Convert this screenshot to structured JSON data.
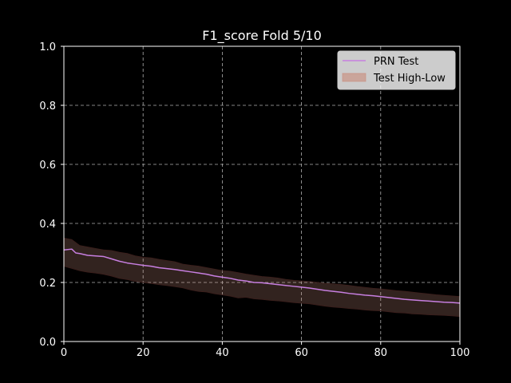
{
  "chart_data": {
    "type": "line",
    "title": "F1_score Fold 5/10",
    "xlabel": "",
    "ylabel": "",
    "xlim": [
      0,
      100
    ],
    "ylim": [
      0.0,
      1.0
    ],
    "x_ticks": [
      "0",
      "20",
      "40",
      "60",
      "80",
      "100"
    ],
    "y_ticks": [
      "0.0",
      "0.2",
      "0.4",
      "0.6",
      "0.8",
      "1.0"
    ],
    "grid": true,
    "legend_position": "top-right",
    "legend": [
      "PRN Test",
      "Test High-Low"
    ],
    "series": [
      {
        "name": "PRN Test",
        "kind": "line",
        "color": "#c77fe0",
        "x": [
          0,
          2,
          3,
          4,
          6,
          8,
          10,
          12,
          14,
          16,
          18,
          20,
          22,
          24,
          26,
          28,
          30,
          32,
          34,
          36,
          38,
          40,
          42,
          44,
          46,
          48,
          50,
          52,
          54,
          56,
          58,
          60,
          62,
          64,
          66,
          68,
          70,
          72,
          74,
          76,
          78,
          80,
          82,
          84,
          86,
          88,
          90,
          92,
          94,
          96,
          98,
          100
        ],
        "values": [
          0.31,
          0.313,
          0.3,
          0.298,
          0.292,
          0.29,
          0.288,
          0.28,
          0.272,
          0.266,
          0.262,
          0.258,
          0.255,
          0.25,
          0.247,
          0.244,
          0.24,
          0.236,
          0.232,
          0.228,
          0.222,
          0.218,
          0.214,
          0.208,
          0.205,
          0.2,
          0.199,
          0.196,
          0.193,
          0.19,
          0.187,
          0.184,
          0.181,
          0.177,
          0.173,
          0.17,
          0.167,
          0.163,
          0.16,
          0.157,
          0.155,
          0.152,
          0.149,
          0.146,
          0.143,
          0.141,
          0.139,
          0.137,
          0.135,
          0.133,
          0.132,
          0.13
        ]
      },
      {
        "name": "Test High-Low",
        "kind": "band",
        "color": "#c88a7a",
        "x": [
          0,
          2,
          4,
          6,
          8,
          10,
          12,
          14,
          16,
          18,
          20,
          22,
          24,
          26,
          28,
          30,
          32,
          34,
          36,
          38,
          40,
          42,
          44,
          46,
          48,
          50,
          52,
          54,
          56,
          58,
          60,
          62,
          64,
          66,
          68,
          70,
          72,
          74,
          76,
          78,
          80,
          82,
          84,
          86,
          88,
          90,
          92,
          94,
          96,
          98,
          100
        ],
        "high": [
          0.35,
          0.345,
          0.325,
          0.32,
          0.315,
          0.31,
          0.308,
          0.302,
          0.298,
          0.29,
          0.285,
          0.283,
          0.278,
          0.274,
          0.27,
          0.262,
          0.258,
          0.255,
          0.25,
          0.245,
          0.24,
          0.238,
          0.233,
          0.228,
          0.224,
          0.22,
          0.218,
          0.215,
          0.21,
          0.207,
          0.205,
          0.203,
          0.2,
          0.197,
          0.195,
          0.193,
          0.19,
          0.186,
          0.183,
          0.18,
          0.178,
          0.175,
          0.172,
          0.17,
          0.167,
          0.164,
          0.161,
          0.158,
          0.156,
          0.154,
          0.152
        ],
        "low": [
          0.255,
          0.248,
          0.24,
          0.235,
          0.232,
          0.228,
          0.222,
          0.214,
          0.21,
          0.204,
          0.2,
          0.197,
          0.193,
          0.19,
          0.186,
          0.182,
          0.175,
          0.17,
          0.168,
          0.162,
          0.158,
          0.154,
          0.148,
          0.15,
          0.145,
          0.143,
          0.14,
          0.138,
          0.135,
          0.132,
          0.13,
          0.128,
          0.124,
          0.12,
          0.117,
          0.115,
          0.112,
          0.11,
          0.107,
          0.105,
          0.104,
          0.101,
          0.098,
          0.097,
          0.094,
          0.093,
          0.091,
          0.09,
          0.089,
          0.087,
          0.085
        ]
      }
    ]
  }
}
